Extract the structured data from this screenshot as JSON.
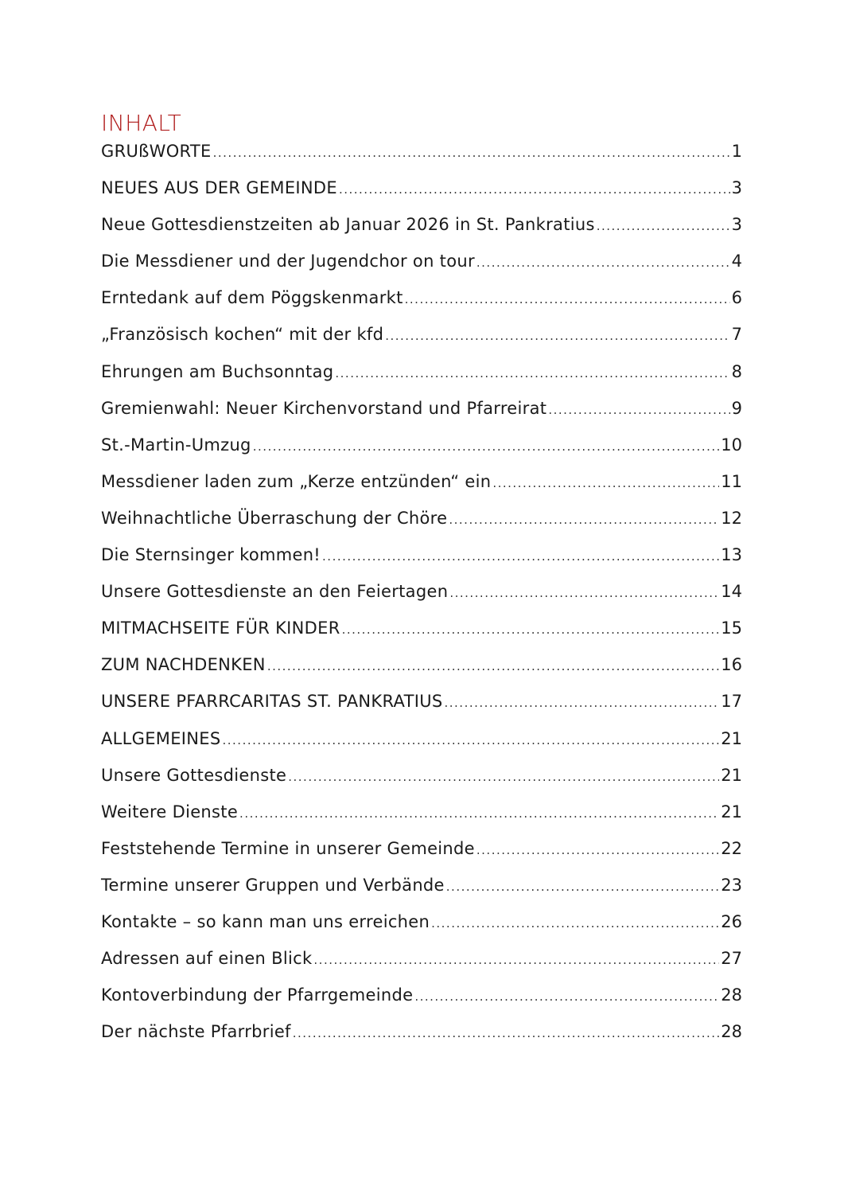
{
  "title": "INHALT",
  "title_color": "#b01c1c",
  "entries": [
    {
      "label": "GRUßWORTE",
      "page": "1"
    },
    {
      "label": "NEUES AUS DER GEMEINDE",
      "page": "3"
    },
    {
      "label": "Neue Gottesdienstzeiten ab Januar 2026 in St. Pankratius",
      "page": "3"
    },
    {
      "label": "Die Messdiener und der Jugendchor on tour",
      "page": "4"
    },
    {
      "label": "Erntedank auf dem Pöggskenmarkt",
      "page": "6"
    },
    {
      "label": "„Französisch kochen“ mit der kfd",
      "page": "7"
    },
    {
      "label": "Ehrungen am Buchsonntag",
      "page": "8"
    },
    {
      "label": "Gremienwahl: Neuer Kirchenvorstand und Pfarreirat",
      "page": "9"
    },
    {
      "label": "St.-Martin-Umzug",
      "page": "10"
    },
    {
      "label": "Messdiener laden zum „Kerze entzünden“ ein",
      "page": "11"
    },
    {
      "label": "Weihnachtliche Überraschung der Chöre",
      "page": "12"
    },
    {
      "label": "Die Sternsinger kommen!",
      "page": "13"
    },
    {
      "label": "Unsere Gottesdienste an den Feiertagen",
      "page": "14"
    },
    {
      "label": "MITMACHSEITE FÜR KINDER",
      "page": "15"
    },
    {
      "label": "ZUM NACHDENKEN",
      "page": "16"
    },
    {
      "label": "UNSERE PFARRCARITAS ST. PANKRATIUS",
      "page": "17"
    },
    {
      "label": "ALLGEMEINES",
      "page": "21"
    },
    {
      "label": "Unsere Gottesdienste",
      "page": "21"
    },
    {
      "label": "Weitere Dienste",
      "page": "21"
    },
    {
      "label": "Feststehende Termine in unserer Gemeinde",
      "page": "22"
    },
    {
      "label": "Termine unserer Gruppen und Verbände",
      "page": "23"
    },
    {
      "label": "Kontakte – so kann man uns erreichen",
      "page": "26"
    },
    {
      "label": "Adressen auf einen Blick",
      "page": "27"
    },
    {
      "label": "Kontoverbindung der Pfarrgemeinde",
      "page": "28"
    },
    {
      "label": "Der nächste Pfarrbrief",
      "page": "28"
    }
  ]
}
